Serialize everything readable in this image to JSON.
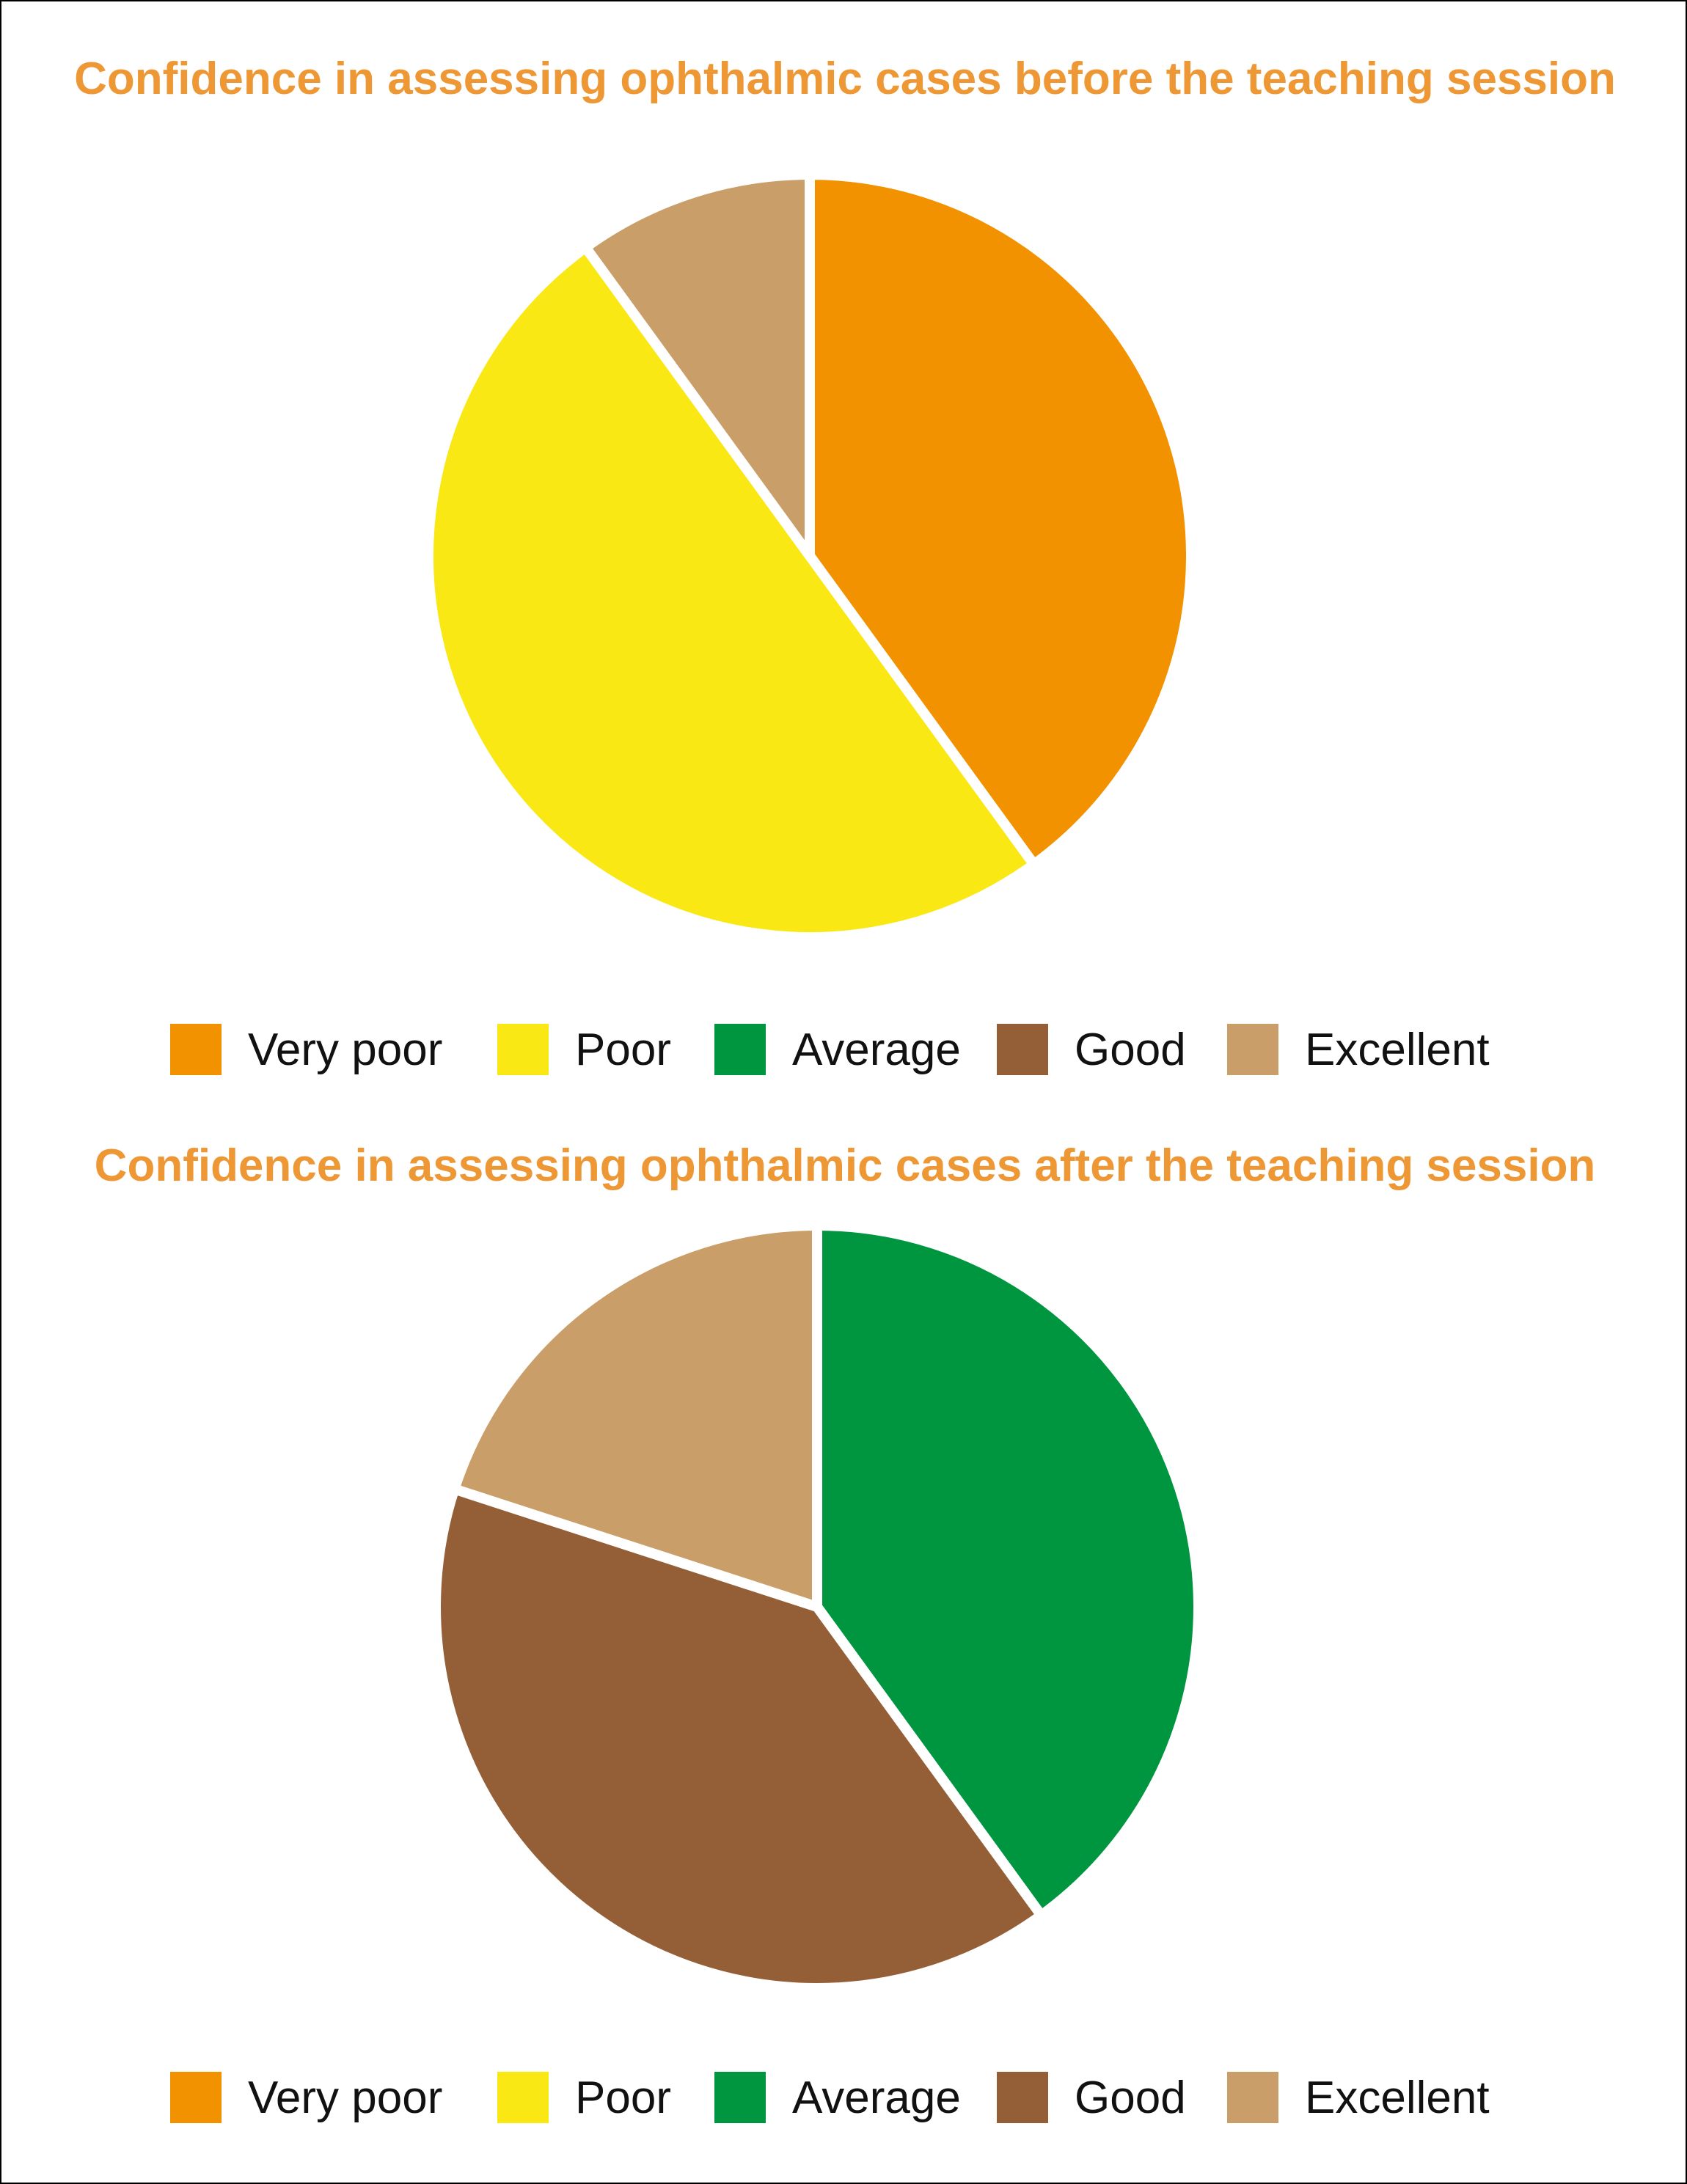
{
  "legend": {
    "entries": [
      {
        "label": "Very poor",
        "color": "#f39200"
      },
      {
        "label": "Poor",
        "color": "#fae814"
      },
      {
        "label": "Average",
        "color": "#009640"
      },
      {
        "label": "Good",
        "color": "#945f37"
      },
      {
        "label": "Excellent",
        "color": "#c99e69"
      }
    ]
  },
  "chart_data": [
    {
      "type": "pie",
      "title": "Confidence in assessing ophthalmic cases before the teaching session",
      "categories": [
        "Very poor",
        "Poor",
        "Average",
        "Good",
        "Excellent"
      ],
      "values": [
        40,
        50,
        0,
        0,
        10
      ],
      "colors": [
        "#f39200",
        "#fae814",
        "#009640",
        "#945f37",
        "#c99e69"
      ],
      "start_angle": "top, clockwise",
      "legend_position": "bottom"
    },
    {
      "type": "pie",
      "title": "Confidence in assessing ophthalmic cases after the teaching session",
      "categories": [
        "Very poor",
        "Poor",
        "Average",
        "Good",
        "Excellent"
      ],
      "values": [
        0,
        0,
        40,
        40,
        20
      ],
      "colors": [
        "#f39200",
        "#fae814",
        "#009640",
        "#945f37",
        "#c99e69"
      ],
      "start_angle": "top, clockwise",
      "legend_position": "bottom"
    }
  ]
}
